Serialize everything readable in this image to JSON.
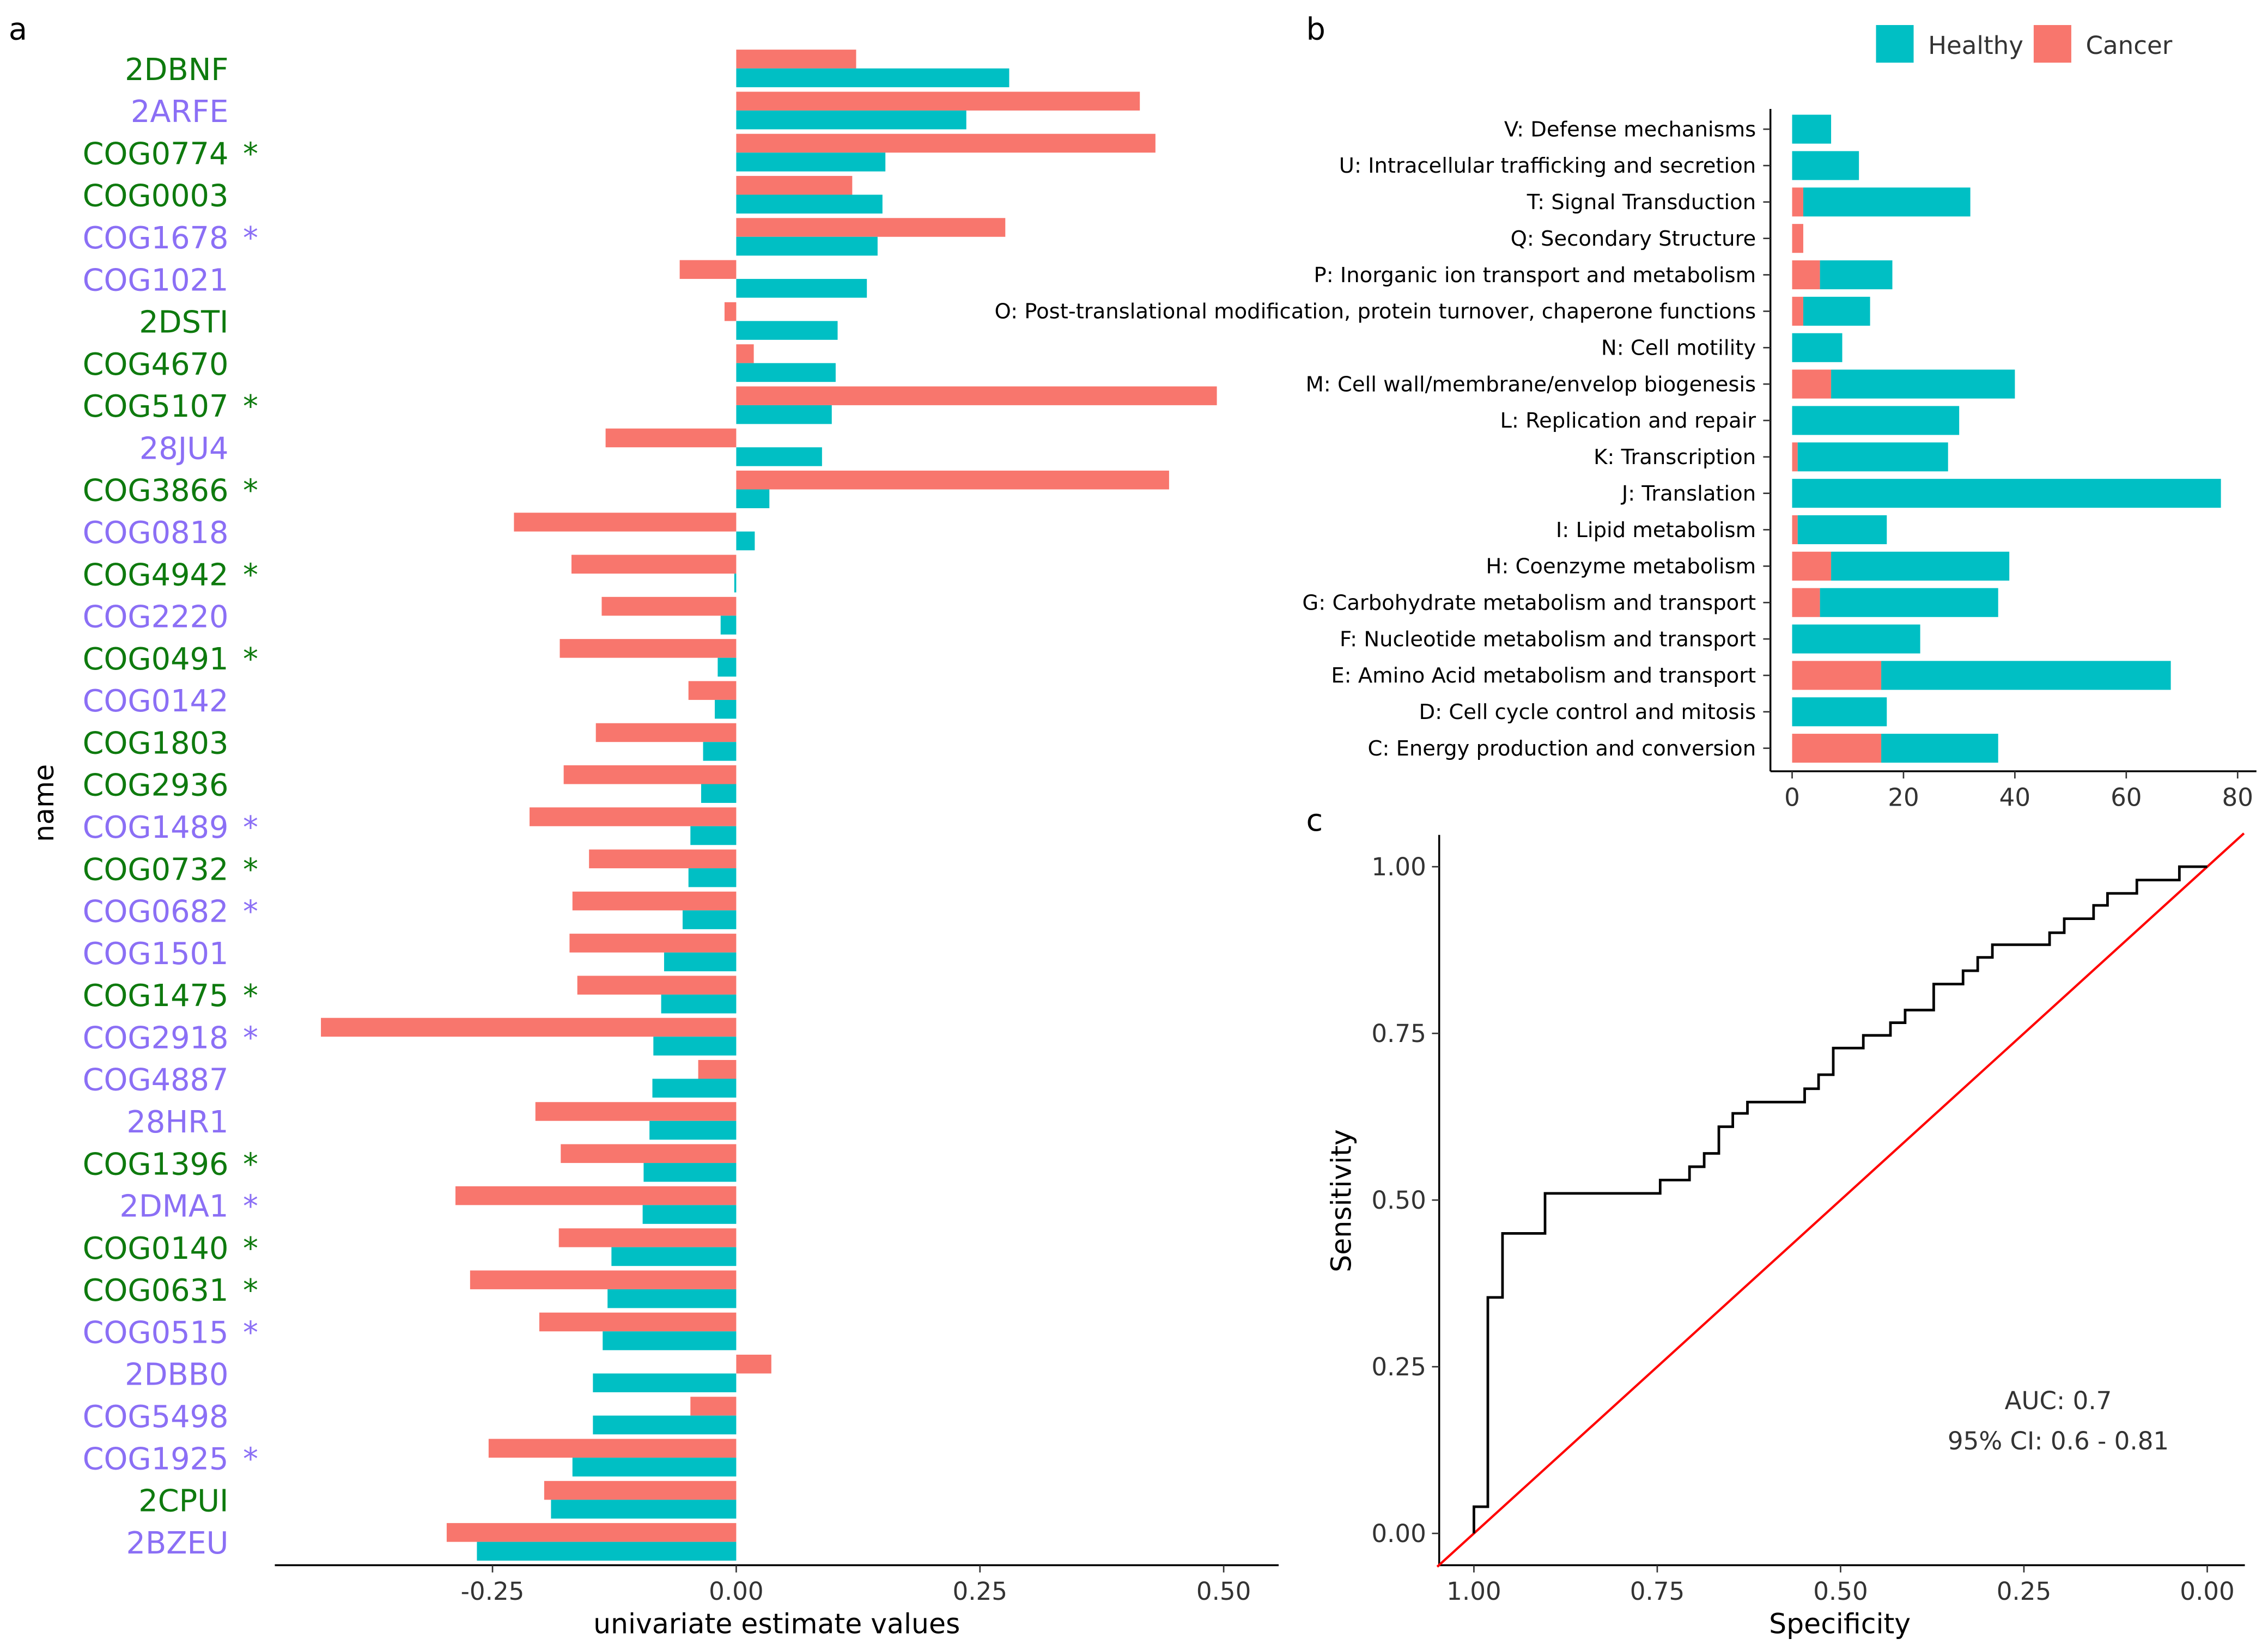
{
  "panels": {
    "a": "a",
    "b": "b",
    "c": "c"
  },
  "colors": {
    "healthy": "#00BFC4",
    "cancer": "#F8766D",
    "label_green": "#0E7A0E",
    "label_purple": "#8B6FF5",
    "roc": "#000000",
    "diagonal": "#FF0000"
  },
  "chart_data": [
    {
      "type": "bar",
      "orientation": "horizontal",
      "panel": "a",
      "xlabel": "univariate estimate values",
      "ylabel": "name",
      "xlim": [
        -0.47,
        0.56
      ],
      "xticks": [
        {
          "v": -0.25,
          "label": "-0.25"
        },
        {
          "v": 0,
          "label": "0.00"
        },
        {
          "v": 0.25,
          "label": "0.25"
        },
        {
          "v": 0.5,
          "label": "0.50"
        }
      ],
      "series_names": [
        "Cancer",
        "Healthy"
      ],
      "rows": [
        {
          "name": "2DBNF",
          "group": "green",
          "star": "",
          "cancer": 0.123,
          "healthy": 0.28
        },
        {
          "name": "2ARFE",
          "group": "purple",
          "star": "",
          "cancer": 0.414,
          "healthy": 0.236
        },
        {
          "name": "COG0774",
          "group": "green",
          "star": "*",
          "cancer": 0.43,
          "healthy": 0.153
        },
        {
          "name": "COG0003",
          "group": "green",
          "star": "",
          "cancer": 0.119,
          "healthy": 0.15
        },
        {
          "name": "COG1678",
          "group": "purple",
          "star": "*",
          "cancer": 0.276,
          "healthy": 0.145
        },
        {
          "name": "COG1021",
          "group": "purple",
          "star": "",
          "cancer": -0.058,
          "healthy": 0.134
        },
        {
          "name": "2DSTI",
          "group": "green",
          "star": "",
          "cancer": -0.012,
          "healthy": 0.104
        },
        {
          "name": "COG4670",
          "group": "green",
          "star": "",
          "cancer": 0.018,
          "healthy": 0.102
        },
        {
          "name": "COG5107",
          "group": "green",
          "star": "*",
          "cancer": 0.493,
          "healthy": 0.098
        },
        {
          "name": "28JU4",
          "group": "purple",
          "star": "",
          "cancer": -0.134,
          "healthy": 0.088
        },
        {
          "name": "COG3866",
          "group": "green",
          "star": "*",
          "cancer": 0.444,
          "healthy": 0.034
        },
        {
          "name": "COG0818",
          "group": "purple",
          "star": "",
          "cancer": -0.228,
          "healthy": 0.019
        },
        {
          "name": "COG4942",
          "group": "green",
          "star": "*",
          "cancer": -0.169,
          "healthy": -0.002
        },
        {
          "name": "COG2220",
          "group": "purple",
          "star": "",
          "cancer": -0.138,
          "healthy": -0.016
        },
        {
          "name": "COG0491",
          "group": "green",
          "star": "*",
          "cancer": -0.181,
          "healthy": -0.019
        },
        {
          "name": "COG0142",
          "group": "purple",
          "star": "",
          "cancer": -0.049,
          "healthy": -0.022
        },
        {
          "name": "COG1803",
          "group": "green",
          "star": "",
          "cancer": -0.144,
          "healthy": -0.034
        },
        {
          "name": "COG2936",
          "group": "green",
          "star": "",
          "cancer": -0.177,
          "healthy": -0.036
        },
        {
          "name": "COG1489",
          "group": "purple",
          "star": "*",
          "cancer": -0.212,
          "healthy": -0.047
        },
        {
          "name": "COG0732",
          "group": "green",
          "star": "*",
          "cancer": -0.151,
          "healthy": -0.049
        },
        {
          "name": "COG0682",
          "group": "purple",
          "star": "*",
          "cancer": -0.168,
          "healthy": -0.055
        },
        {
          "name": "COG1501",
          "group": "purple",
          "star": "",
          "cancer": -0.171,
          "healthy": -0.074
        },
        {
          "name": "COG1475",
          "group": "green",
          "star": "*",
          "cancer": -0.163,
          "healthy": -0.077
        },
        {
          "name": "COG2918",
          "group": "purple",
          "star": "*",
          "cancer": -0.426,
          "healthy": -0.085
        },
        {
          "name": "COG4887",
          "group": "purple",
          "star": "",
          "cancer": -0.039,
          "healthy": -0.086
        },
        {
          "name": "28HR1",
          "group": "purple",
          "star": "",
          "cancer": -0.206,
          "healthy": -0.089
        },
        {
          "name": "COG1396",
          "group": "green",
          "star": "*",
          "cancer": -0.18,
          "healthy": -0.095
        },
        {
          "name": "2DMA1",
          "group": "purple",
          "star": "*",
          "cancer": -0.288,
          "healthy": -0.096
        },
        {
          "name": "COG0140",
          "group": "green",
          "star": "*",
          "cancer": -0.182,
          "healthy": -0.128
        },
        {
          "name": "COG0631",
          "group": "green",
          "star": "*",
          "cancer": -0.273,
          "healthy": -0.132
        },
        {
          "name": "COG0515",
          "group": "purple",
          "star": "*",
          "cancer": -0.202,
          "healthy": -0.137
        },
        {
          "name": "2DBB0",
          "group": "purple",
          "star": "",
          "cancer": 0.036,
          "healthy": -0.147
        },
        {
          "name": "COG5498",
          "group": "purple",
          "star": "",
          "cancer": -0.047,
          "healthy": -0.147
        },
        {
          "name": "COG1925",
          "group": "purple",
          "star": "*",
          "cancer": -0.254,
          "healthy": -0.168
        },
        {
          "name": "2CPUI",
          "group": "green",
          "star": "",
          "cancer": -0.197,
          "healthy": -0.19
        },
        {
          "name": "2BZEU",
          "group": "purple",
          "star": "",
          "cancer": -0.297,
          "healthy": -0.266
        }
      ]
    },
    {
      "type": "bar",
      "orientation": "horizontal",
      "stacked": true,
      "panel": "b",
      "legend": {
        "position": "top-right",
        "entries": [
          "Healthy",
          "Cancer"
        ]
      },
      "xlim": [
        -4,
        84
      ],
      "xticks": [
        0,
        20,
        40,
        60,
        80
      ],
      "rows": [
        {
          "label": "V: Defense mechanisms",
          "cancer": 0,
          "healthy": 7
        },
        {
          "label": "U: Intracellular trafficking and secretion",
          "cancer": 0,
          "healthy": 12
        },
        {
          "label": "T: Signal Transduction",
          "cancer": 2,
          "healthy": 30
        },
        {
          "label": "Q: Secondary Structure",
          "cancer": 2,
          "healthy": 0
        },
        {
          "label": "P: Inorganic ion transport and metabolism",
          "cancer": 5,
          "healthy": 13
        },
        {
          "label": "O: Post-translational modification, protein turnover, chaperone functions",
          "cancer": 2,
          "healthy": 12
        },
        {
          "label": "N: Cell motility",
          "cancer": 0,
          "healthy": 9
        },
        {
          "label": "M: Cell wall/membrane/envelop biogenesis",
          "cancer": 7,
          "healthy": 33
        },
        {
          "label": "L: Replication and repair",
          "cancer": 0,
          "healthy": 30
        },
        {
          "label": "K: Transcription",
          "cancer": 1,
          "healthy": 27
        },
        {
          "label": "J: Translation",
          "cancer": 0,
          "healthy": 77
        },
        {
          "label": "I: Lipid metabolism",
          "cancer": 1,
          "healthy": 16
        },
        {
          "label": "H: Coenzyme metabolism",
          "cancer": 7,
          "healthy": 32
        },
        {
          "label": "G: Carbohydrate metabolism and transport",
          "cancer": 5,
          "healthy": 32
        },
        {
          "label": "F: Nucleotide metabolism and transport",
          "cancer": 0,
          "healthy": 23
        },
        {
          "label": "E: Amino Acid metabolism and transport",
          "cancer": 16,
          "healthy": 52
        },
        {
          "label": "D: Cell cycle control and mitosis",
          "cancer": 0,
          "healthy": 17
        },
        {
          "label": "C: Energy production and conversion",
          "cancer": 16,
          "healthy": 21
        }
      ]
    },
    {
      "type": "line",
      "panel": "c",
      "xlabel": "Specificity",
      "ylabel": "Sensitivity",
      "x_reversed": true,
      "xlim": [
        1.05,
        -0.05
      ],
      "ylim": [
        -0.05,
        1.05
      ],
      "xticks": [
        {
          "v": 1,
          "label": "1.00"
        },
        {
          "v": 0.75,
          "label": "0.75"
        },
        {
          "v": 0.5,
          "label": "0.50"
        },
        {
          "v": 0.25,
          "label": "0.25"
        },
        {
          "v": 0,
          "label": "0.00"
        }
      ],
      "yticks": [
        {
          "v": 0,
          "label": "0.00"
        },
        {
          "v": 0.25,
          "label": "0.25"
        },
        {
          "v": 0.5,
          "label": "0.50"
        },
        {
          "v": 0.75,
          "label": "0.75"
        },
        {
          "v": 1,
          "label": "1.00"
        }
      ],
      "annotations": [
        "AUC: 0.7",
        "95% CI: 0.6 - 0.81"
      ],
      "roc_steps": [
        [
          1.0,
          0.0
        ],
        [
          1.0,
          0.04
        ],
        [
          0.981,
          0.04
        ],
        [
          0.981,
          0.354
        ],
        [
          0.961,
          0.354
        ],
        [
          0.961,
          0.45
        ],
        [
          0.903,
          0.45
        ],
        [
          0.903,
          0.51
        ],
        [
          0.746,
          0.51
        ],
        [
          0.746,
          0.53
        ],
        [
          0.706,
          0.53
        ],
        [
          0.706,
          0.55
        ],
        [
          0.686,
          0.55
        ],
        [
          0.686,
          0.57
        ],
        [
          0.666,
          0.57
        ],
        [
          0.666,
          0.61
        ],
        [
          0.647,
          0.61
        ],
        [
          0.647,
          0.63
        ],
        [
          0.627,
          0.63
        ],
        [
          0.627,
          0.647
        ],
        [
          0.549,
          0.647
        ],
        [
          0.549,
          0.667
        ],
        [
          0.53,
          0.667
        ],
        [
          0.53,
          0.688
        ],
        [
          0.51,
          0.688
        ],
        [
          0.51,
          0.728
        ],
        [
          0.469,
          0.728
        ],
        [
          0.469,
          0.747
        ],
        [
          0.432,
          0.747
        ],
        [
          0.432,
          0.766
        ],
        [
          0.412,
          0.766
        ],
        [
          0.412,
          0.785
        ],
        [
          0.373,
          0.785
        ],
        [
          0.373,
          0.824
        ],
        [
          0.333,
          0.824
        ],
        [
          0.333,
          0.844
        ],
        [
          0.313,
          0.844
        ],
        [
          0.313,
          0.864
        ],
        [
          0.293,
          0.864
        ],
        [
          0.293,
          0.883
        ],
        [
          0.215,
          0.883
        ],
        [
          0.215,
          0.901
        ],
        [
          0.195,
          0.901
        ],
        [
          0.195,
          0.922
        ],
        [
          0.155,
          0.922
        ],
        [
          0.155,
          0.942
        ],
        [
          0.136,
          0.942
        ],
        [
          0.136,
          0.96
        ],
        [
          0.096,
          0.96
        ],
        [
          0.096,
          0.98
        ],
        [
          0.038,
          0.98
        ],
        [
          0.038,
          1.0
        ],
        [
          0.0,
          1.0
        ]
      ]
    }
  ]
}
